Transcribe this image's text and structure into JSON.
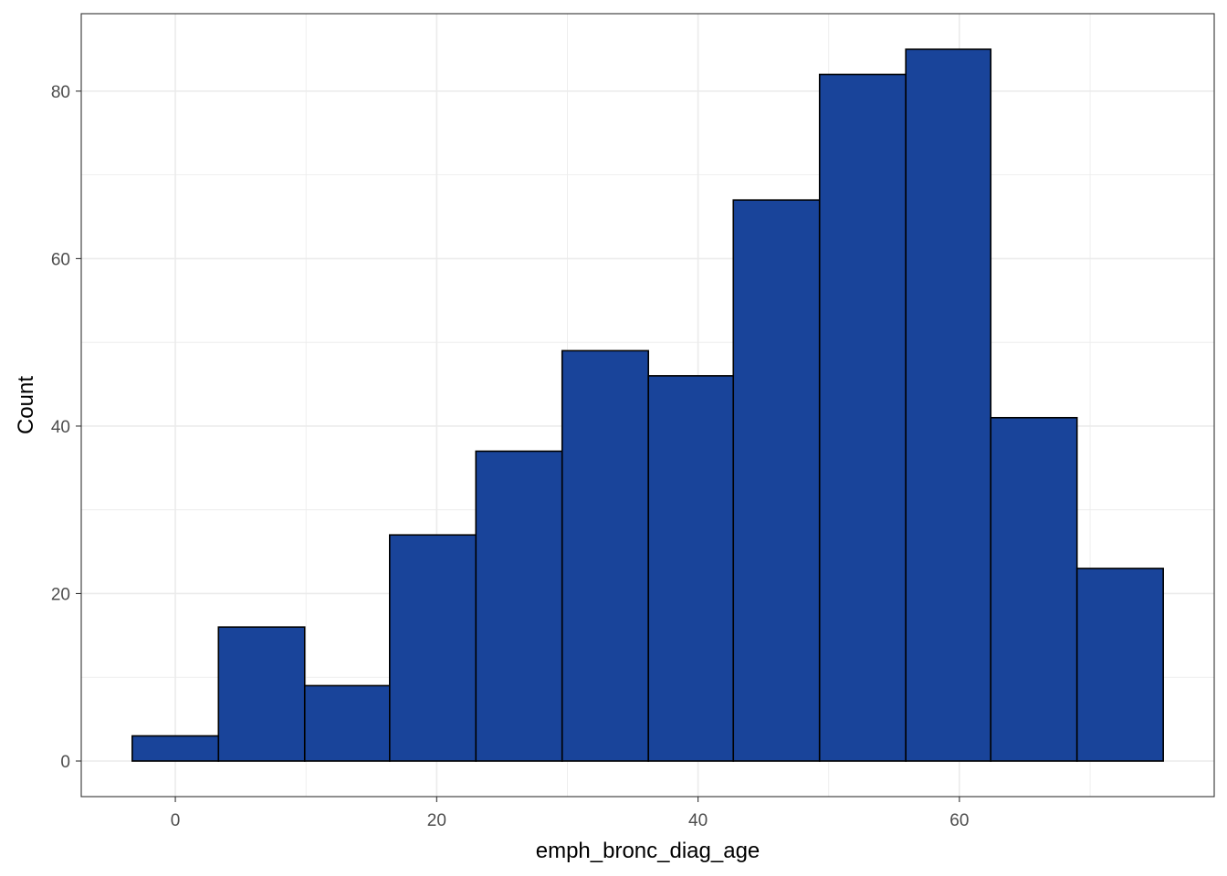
{
  "chart_data": {
    "type": "bar",
    "subtype": "histogram",
    "title": "",
    "xlabel": "emph_bronc_diag_age",
    "ylabel": "Count",
    "bins": [
      {
        "x0": -3.3,
        "x1": 3.3,
        "count": 3
      },
      {
        "x0": 3.3,
        "x1": 9.9,
        "count": 16
      },
      {
        "x0": 9.9,
        "x1": 16.4,
        "count": 9
      },
      {
        "x0": 16.4,
        "x1": 23.0,
        "count": 27
      },
      {
        "x0": 23.0,
        "x1": 29.6,
        "count": 37
      },
      {
        "x0": 29.6,
        "x1": 36.2,
        "count": 49
      },
      {
        "x0": 36.2,
        "x1": 42.7,
        "count": 46
      },
      {
        "x0": 42.7,
        "x1": 49.3,
        "count": 67
      },
      {
        "x0": 49.3,
        "x1": 55.9,
        "count": 82
      },
      {
        "x0": 55.9,
        "x1": 62.4,
        "count": 85
      },
      {
        "x0": 62.4,
        "x1": 69.0,
        "count": 41
      },
      {
        "x0": 69.0,
        "x1": 75.6,
        "count": 23
      }
    ],
    "xlim": [
      -7.2,
      79.5
    ],
    "ylim": [
      -4.25,
      89.25
    ],
    "x_ticks": [
      0,
      20,
      40,
      60
    ],
    "y_ticks": [
      0,
      20,
      40,
      60,
      80
    ],
    "x_minor": [
      10,
      30,
      50,
      70
    ],
    "y_minor": [
      10,
      30,
      50,
      70
    ],
    "grid": true,
    "legend": "none",
    "colors": {
      "bar_fill": "#19449A",
      "bar_stroke": "#000000",
      "grid": "#EBEBEB",
      "panel_border": "#333333",
      "tick_text": "#4D4D4D"
    }
  }
}
